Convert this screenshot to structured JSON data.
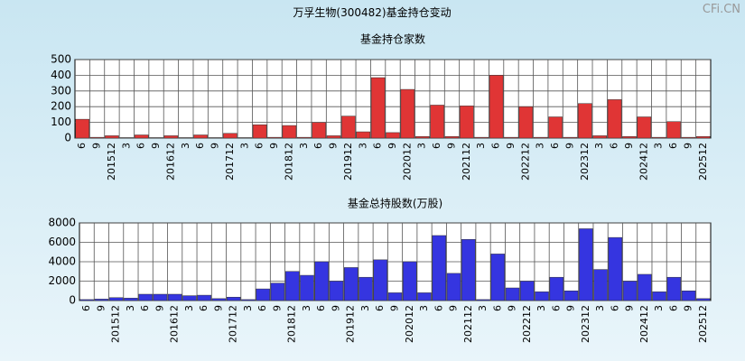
{
  "watermark": "CFi.CN",
  "chart_data": [
    {
      "type": "bar",
      "title": "万孚生物(300482)基金持仓变动",
      "subtitle": "基金持仓家数",
      "categories": [
        "6",
        "9",
        "201512",
        "3",
        "6",
        "9",
        "201612",
        "3",
        "6",
        "9",
        "201712",
        "3",
        "6",
        "9",
        "201812",
        "3",
        "6",
        "9",
        "201912",
        "3",
        "6",
        "9",
        "202012",
        "3",
        "6",
        "9",
        "202112",
        "3",
        "6",
        "9",
        "202212",
        "3",
        "6",
        "9",
        "202312",
        "3",
        "6",
        "9",
        "202412",
        "3",
        "6",
        "9",
        "202512"
      ],
      "values": [
        120,
        5,
        15,
        3,
        20,
        3,
        15,
        3,
        20,
        3,
        30,
        3,
        85,
        5,
        80,
        5,
        100,
        15,
        140,
        40,
        385,
        35,
        310,
        10,
        210,
        10,
        205,
        5,
        400,
        5,
        200,
        5,
        135,
        5,
        220,
        15,
        245,
        10,
        135,
        5,
        105,
        5,
        10
      ],
      "color": "#e03535",
      "ylim": [
        0,
        500
      ],
      "yticks": [
        0,
        100,
        200,
        300,
        400,
        500
      ],
      "grid": true
    },
    {
      "type": "bar",
      "subtitle": "基金总持股数(万股)",
      "categories": [
        "6",
        "9",
        "201512",
        "3",
        "6",
        "9",
        "201612",
        "3",
        "6",
        "9",
        "201712",
        "3",
        "6",
        "9",
        "201812",
        "3",
        "6",
        "9",
        "201912",
        "3",
        "6",
        "9",
        "202012",
        "3",
        "6",
        "9",
        "202112",
        "3",
        "6",
        "9",
        "202212",
        "3",
        "6",
        "9",
        "202312",
        "3",
        "6",
        "9",
        "202412",
        "3",
        "6",
        "9",
        "202512"
      ],
      "values": [
        100,
        150,
        300,
        250,
        650,
        650,
        650,
        500,
        550,
        200,
        350,
        100,
        1200,
        1800,
        3000,
        2600,
        4000,
        2000,
        3400,
        2400,
        4200,
        800,
        4000,
        800,
        6700,
        2800,
        6300,
        100,
        4800,
        1300,
        2000,
        900,
        2400,
        1000,
        7400,
        3200,
        6500,
        2000,
        2700,
        900,
        2400,
        1000,
        200
      ],
      "color": "#3535e0",
      "ylim": [
        0,
        8000
      ],
      "yticks": [
        0,
        2000,
        4000,
        6000,
        8000
      ],
      "grid": true
    }
  ]
}
